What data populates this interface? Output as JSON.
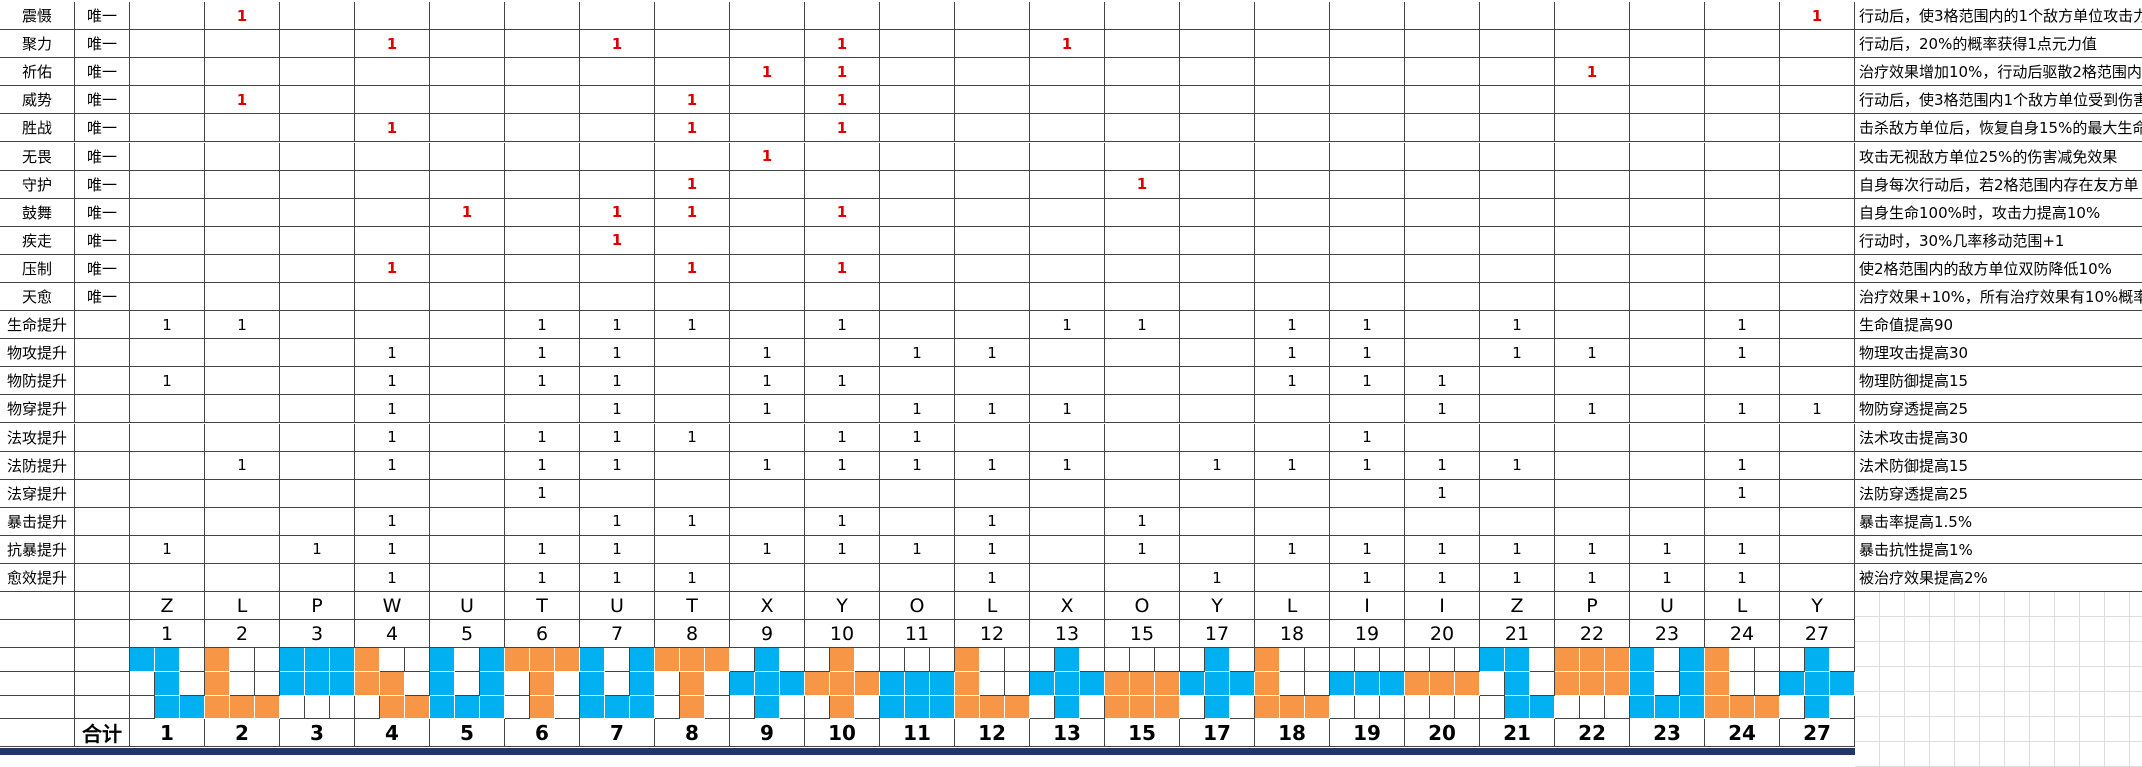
{
  "sheet": {
    "rows": [
      {
        "name": "震慑",
        "tag": "唯一",
        "values": [
          null,
          1,
          null,
          null,
          null,
          null,
          null,
          null,
          null,
          null,
          null,
          null,
          null,
          null,
          null,
          null,
          null,
          null,
          null,
          null,
          null,
          null,
          1
        ],
        "desc": "行动后，使3格范围内的1个敌方单位攻击力"
      },
      {
        "name": "聚力",
        "tag": "唯一",
        "values": [
          null,
          null,
          null,
          1,
          null,
          null,
          1,
          null,
          null,
          1,
          null,
          null,
          1,
          null,
          null,
          null,
          null,
          null,
          null,
          null,
          null,
          null,
          null
        ],
        "desc": "行动后，20%的概率获得1点元力值"
      },
      {
        "name": "祈佑",
        "tag": "唯一",
        "values": [
          null,
          null,
          null,
          null,
          null,
          null,
          null,
          null,
          1,
          1,
          null,
          null,
          null,
          null,
          null,
          null,
          null,
          null,
          null,
          1,
          null,
          null,
          null
        ],
        "desc": "治疗效果增加10%，行动后驱散2格范围内友"
      },
      {
        "name": "威势",
        "tag": "唯一",
        "values": [
          null,
          1,
          null,
          null,
          null,
          null,
          null,
          1,
          null,
          1,
          null,
          null,
          null,
          null,
          null,
          null,
          null,
          null,
          null,
          null,
          null,
          null,
          null
        ],
        "desc": "行动后，使3格范围内1个敌方单位受到伤害"
      },
      {
        "name": "胜战",
        "tag": "唯一",
        "values": [
          null,
          null,
          null,
          1,
          null,
          null,
          null,
          1,
          null,
          1,
          null,
          null,
          null,
          null,
          null,
          null,
          null,
          null,
          null,
          null,
          null,
          null,
          null
        ],
        "desc": "击杀敌方单位后，恢复自身15%的最大生命"
      },
      {
        "name": "无畏",
        "tag": "唯一",
        "values": [
          null,
          null,
          null,
          null,
          null,
          null,
          null,
          null,
          1,
          null,
          null,
          null,
          null,
          null,
          null,
          null,
          null,
          null,
          null,
          null,
          null,
          null,
          null
        ],
        "desc": "攻击无视敌方单位25%的伤害减免效果"
      },
      {
        "name": "守护",
        "tag": "唯一",
        "values": [
          null,
          null,
          null,
          null,
          null,
          null,
          null,
          1,
          null,
          null,
          null,
          null,
          null,
          1,
          null,
          null,
          null,
          null,
          null,
          null,
          null,
          null,
          null
        ],
        "desc": "自身每次行动后，若2格范围内存在友方单"
      },
      {
        "name": "鼓舞",
        "tag": "唯一",
        "values": [
          null,
          null,
          null,
          null,
          1,
          null,
          1,
          1,
          null,
          1,
          null,
          null,
          null,
          null,
          null,
          null,
          null,
          null,
          null,
          null,
          null,
          null,
          null
        ],
        "desc": "自身生命100%时，攻击力提高10%"
      },
      {
        "name": "疾走",
        "tag": "唯一",
        "values": [
          null,
          null,
          null,
          null,
          null,
          null,
          1,
          null,
          null,
          null,
          null,
          null,
          null,
          null,
          null,
          null,
          null,
          null,
          null,
          null,
          null,
          null,
          null
        ],
        "desc": "行动时，30%几率移动范围+1"
      },
      {
        "name": "压制",
        "tag": "唯一",
        "values": [
          null,
          null,
          null,
          1,
          null,
          null,
          null,
          1,
          null,
          1,
          null,
          null,
          null,
          null,
          null,
          null,
          null,
          null,
          null,
          null,
          null,
          null,
          null
        ],
        "desc": "使2格范围内的敌方单位双防降低10%"
      },
      {
        "name": "天愈",
        "tag": "唯一",
        "values": [
          null,
          null,
          null,
          null,
          null,
          null,
          null,
          null,
          null,
          null,
          null,
          null,
          null,
          null,
          null,
          null,
          null,
          null,
          null,
          null,
          null,
          null,
          null
        ],
        "desc": "治疗效果+10%，所有治疗效果有10%概率"
      },
      {
        "name": "生命提升",
        "values": [
          1,
          1,
          null,
          null,
          null,
          1,
          1,
          1,
          null,
          1,
          null,
          null,
          1,
          1,
          null,
          1,
          1,
          null,
          1,
          null,
          null,
          1,
          null
        ],
        "desc": "生命值提高90"
      },
      {
        "name": "物攻提升",
        "values": [
          null,
          null,
          null,
          1,
          null,
          1,
          1,
          null,
          1,
          null,
          1,
          1,
          null,
          null,
          null,
          1,
          1,
          null,
          1,
          1,
          null,
          1,
          null
        ],
        "desc": "物理攻击提高30"
      },
      {
        "name": "物防提升",
        "values": [
          1,
          null,
          null,
          1,
          null,
          1,
          1,
          null,
          1,
          1,
          null,
          null,
          null,
          null,
          null,
          1,
          1,
          1,
          null,
          null,
          null,
          null,
          null
        ],
        "desc": "物理防御提高15"
      },
      {
        "name": "物穿提升",
        "values": [
          null,
          null,
          null,
          1,
          null,
          null,
          1,
          null,
          1,
          null,
          1,
          1,
          1,
          null,
          null,
          null,
          null,
          1,
          null,
          1,
          null,
          1,
          1
        ],
        "desc": "物防穿透提高25"
      },
      {
        "name": "法攻提升",
        "values": [
          null,
          null,
          null,
          1,
          null,
          1,
          1,
          1,
          null,
          1,
          1,
          null,
          null,
          null,
          null,
          null,
          1,
          null,
          null,
          null,
          null,
          null,
          null
        ],
        "desc": "法术攻击提高30"
      },
      {
        "name": "法防提升",
        "values": [
          null,
          1,
          null,
          1,
          null,
          1,
          1,
          null,
          1,
          1,
          1,
          1,
          1,
          null,
          1,
          1,
          1,
          1,
          1,
          null,
          null,
          1,
          null
        ],
        "desc": "法术防御提高15"
      },
      {
        "name": "法穿提升",
        "values": [
          null,
          null,
          null,
          null,
          null,
          1,
          null,
          null,
          null,
          null,
          null,
          null,
          null,
          null,
          null,
          null,
          null,
          1,
          null,
          null,
          null,
          1,
          null
        ],
        "desc": "法防穿透提高25"
      },
      {
        "name": "暴击提升",
        "values": [
          null,
          null,
          null,
          1,
          null,
          null,
          1,
          1,
          null,
          1,
          null,
          1,
          null,
          1,
          null,
          null,
          null,
          null,
          null,
          null,
          null,
          null,
          null
        ],
        "desc": "暴击率提高1.5%"
      },
      {
        "name": "抗暴提升",
        "values": [
          1,
          null,
          1,
          1,
          null,
          1,
          1,
          null,
          1,
          1,
          1,
          1,
          null,
          1,
          null,
          1,
          1,
          1,
          1,
          1,
          1,
          1,
          null
        ],
        "desc": "暴击抗性提高1%"
      },
      {
        "name": "愈效提升",
        "values": [
          null,
          null,
          null,
          1,
          null,
          1,
          1,
          1,
          null,
          null,
          null,
          1,
          null,
          null,
          1,
          null,
          1,
          1,
          1,
          1,
          1,
          1,
          null
        ],
        "desc": "被治疗效果提高2%"
      }
    ],
    "letters": [
      "Z",
      "L",
      "P",
      "W",
      "U",
      "T",
      "U",
      "T",
      "X",
      "Y",
      "O",
      "L",
      "X",
      "O",
      "Y",
      "L",
      "I",
      "I",
      "Z",
      "P",
      "U",
      "L",
      "Y"
    ],
    "numbers": [
      1,
      2,
      3,
      4,
      5,
      6,
      7,
      8,
      9,
      10,
      11,
      12,
      13,
      15,
      17,
      18,
      19,
      20,
      21,
      22,
      23,
      24,
      27
    ],
    "total_label": "合计",
    "totals": [
      1,
      2,
      3,
      4,
      5,
      6,
      7,
      8,
      9,
      10,
      11,
      12,
      13,
      15,
      17,
      18,
      19,
      20,
      21,
      22,
      23,
      24,
      27
    ]
  }
}
